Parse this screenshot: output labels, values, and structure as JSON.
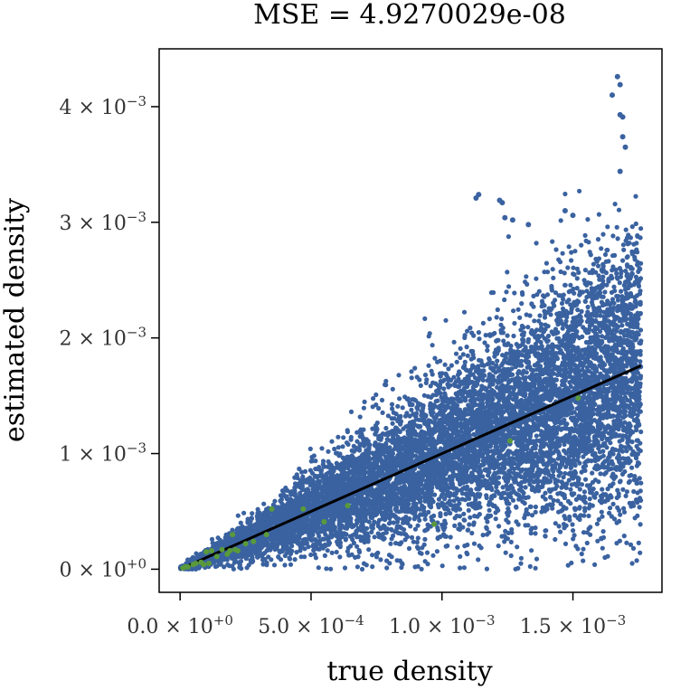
{
  "chart_data": {
    "type": "scatter",
    "title": "MSE = 4.9270029e-08",
    "xlabel": "true density",
    "ylabel": "estimated density",
    "xlim": [
      -8e-05,
      0.00184
    ],
    "ylim": [
      -0.0002,
      0.0045
    ],
    "x_ticks": [
      {
        "value": 0.0,
        "mantissa": "0.0",
        "exponent": "+0"
      },
      {
        "value": 0.0005,
        "mantissa": "5.0",
        "exponent": "−4"
      },
      {
        "value": 0.001,
        "mantissa": "1.0",
        "exponent": "−3"
      },
      {
        "value": 0.0015,
        "mantissa": "1.5",
        "exponent": "−3"
      }
    ],
    "y_ticks": [
      {
        "value": 0.0,
        "mantissa": "0",
        "exponent": "+0"
      },
      {
        "value": 0.001,
        "mantissa": "1",
        "exponent": "−3"
      },
      {
        "value": 0.002,
        "mantissa": "2",
        "exponent": "−3"
      },
      {
        "value": 0.003,
        "mantissa": "3",
        "exponent": "−3"
      },
      {
        "value": 0.004,
        "mantissa": "4",
        "exponent": "−3"
      }
    ],
    "times_sign": "×",
    "tick_base": "10",
    "grid": false,
    "legend": "none",
    "colors": {
      "points_main": "#3a62a0",
      "points_highlight": "#5a9a3a",
      "fit_line": "#000000",
      "frame": "#000000"
    },
    "main_cloud": {
      "n_points": 9000,
      "x_range": [
        0.0,
        0.00176
      ],
      "trend_slope": 1.0,
      "relative_spread": 0.35,
      "outliers": [
        {
          "x": 0.00167,
          "y": 0.00426
        },
        {
          "x": 0.00165,
          "y": 0.0041
        },
        {
          "x": 0.00168,
          "y": 0.00419
        },
        {
          "x": 0.00169,
          "y": 0.00391
        },
        {
          "x": 0.00168,
          "y": 0.00393
        },
        {
          "x": 0.00169,
          "y": 0.00374
        },
        {
          "x": 0.0017,
          "y": 0.00365
        },
        {
          "x": 0.00114,
          "y": 0.00324
        },
        {
          "x": 0.00113,
          "y": 0.00321
        },
        {
          "x": 0.00123,
          "y": 0.00317
        },
        {
          "x": 0.00122,
          "y": 0.00319
        },
        {
          "x": 0.00124,
          "y": 0.00304
        },
        {
          "x": 0.00127,
          "y": 0.00302
        },
        {
          "x": 0.00133,
          "y": 0.00298
        },
        {
          "x": 0.00147,
          "y": 0.0031
        },
        {
          "x": 0.0015,
          "y": 0.00306
        },
        {
          "x": 0.00168,
          "y": 0.00344
        }
      ]
    },
    "fit_line": [
      [
        0.0,
        0.0
      ],
      [
        0.00176,
        0.00176
      ]
    ],
    "highlight_points": [
      {
        "x": 1e-05,
        "y": 1e-05
      },
      {
        "x": 2e-05,
        "y": 2e-05
      },
      {
        "x": 3e-05,
        "y": 2e-05
      },
      {
        "x": 5e-05,
        "y": 4e-05
      },
      {
        "x": 6e-05,
        "y": 5e-05
      },
      {
        "x": 8e-05,
        "y": 6e-05
      },
      {
        "x": 9e-05,
        "y": 4e-05
      },
      {
        "x": 0.0001,
        "y": 0.00015
      },
      {
        "x": 0.00011,
        "y": 5e-05
      },
      {
        "x": 0.00012,
        "y": 0.00016
      },
      {
        "x": 0.00014,
        "y": 0.00011
      },
      {
        "x": 0.00016,
        "y": 0.00017
      },
      {
        "x": 0.00018,
        "y": 0.00013
      },
      {
        "x": 0.00019,
        "y": 0.00016
      },
      {
        "x": 0.0002,
        "y": 0.0003
      },
      {
        "x": 0.00021,
        "y": 0.00017
      },
      {
        "x": 0.00022,
        "y": 0.00016
      },
      {
        "x": 0.00025,
        "y": 0.00022
      },
      {
        "x": 0.00028,
        "y": 0.00024
      },
      {
        "x": 0.00033,
        "y": 0.0003
      },
      {
        "x": 0.00035,
        "y": 0.00052
      },
      {
        "x": 0.00047,
        "y": 0.00052
      },
      {
        "x": 0.00055,
        "y": 0.00041
      },
      {
        "x": 0.00064,
        "y": 0.00055
      },
      {
        "x": 0.00097,
        "y": 0.00039
      },
      {
        "x": 0.00126,
        "y": 0.00111
      },
      {
        "x": 0.00152,
        "y": 0.00148
      }
    ]
  }
}
